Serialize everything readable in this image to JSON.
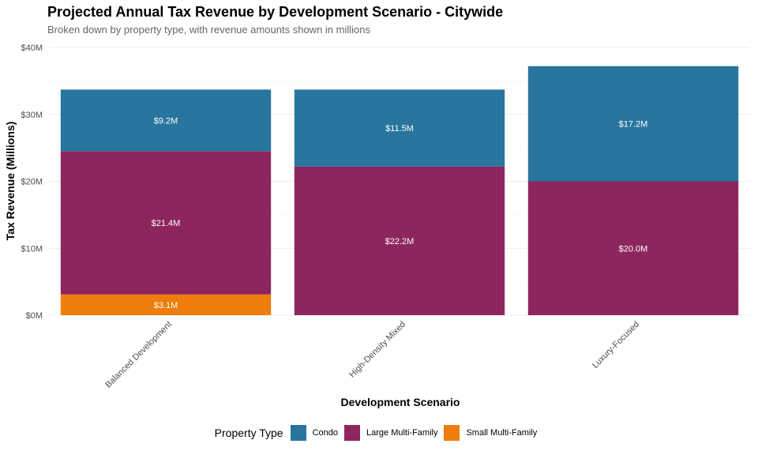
{
  "chart_data": {
    "type": "bar",
    "stacked": true,
    "title": "Projected Annual Tax Revenue by Development Scenario - Citywide",
    "subtitle": "Broken down by property type, with revenue amounts shown in millions",
    "xlabel": "Development Scenario",
    "ylabel": "Tax Revenue (Millions)",
    "ylim": [
      0,
      40
    ],
    "yticks": [
      0,
      10,
      20,
      30,
      40
    ],
    "ytick_labels": [
      "$0M",
      "$10M",
      "$20M",
      "$30M",
      "$40M"
    ],
    "categories": [
      "Balanced Development",
      "High-Density Mixed",
      "Luxury-Focused"
    ],
    "series": [
      {
        "name": "Small Multi-Family",
        "color": "#EE7D0B",
        "values": [
          3.1,
          0,
          0
        ],
        "labels": [
          "$3.1M",
          "",
          ""
        ]
      },
      {
        "name": "Large Multi-Family",
        "color": "#8E265E",
        "values": [
          21.4,
          22.2,
          20.0
        ],
        "labels": [
          "$21.4M",
          "$22.2M",
          "$20.0M"
        ]
      },
      {
        "name": "Condo",
        "color": "#28759E",
        "values": [
          9.2,
          11.5,
          17.2
        ],
        "labels": [
          "$9.2M",
          "$11.5M",
          "$17.2M"
        ]
      }
    ],
    "legend": {
      "title": "Property Type",
      "position": "bottom",
      "entries": [
        {
          "label": "Condo",
          "color": "#28759E"
        },
        {
          "label": "Large Multi-Family",
          "color": "#8E265E"
        },
        {
          "label": "Small Multi-Family",
          "color": "#EE7D0B"
        }
      ]
    },
    "grid": true
  }
}
